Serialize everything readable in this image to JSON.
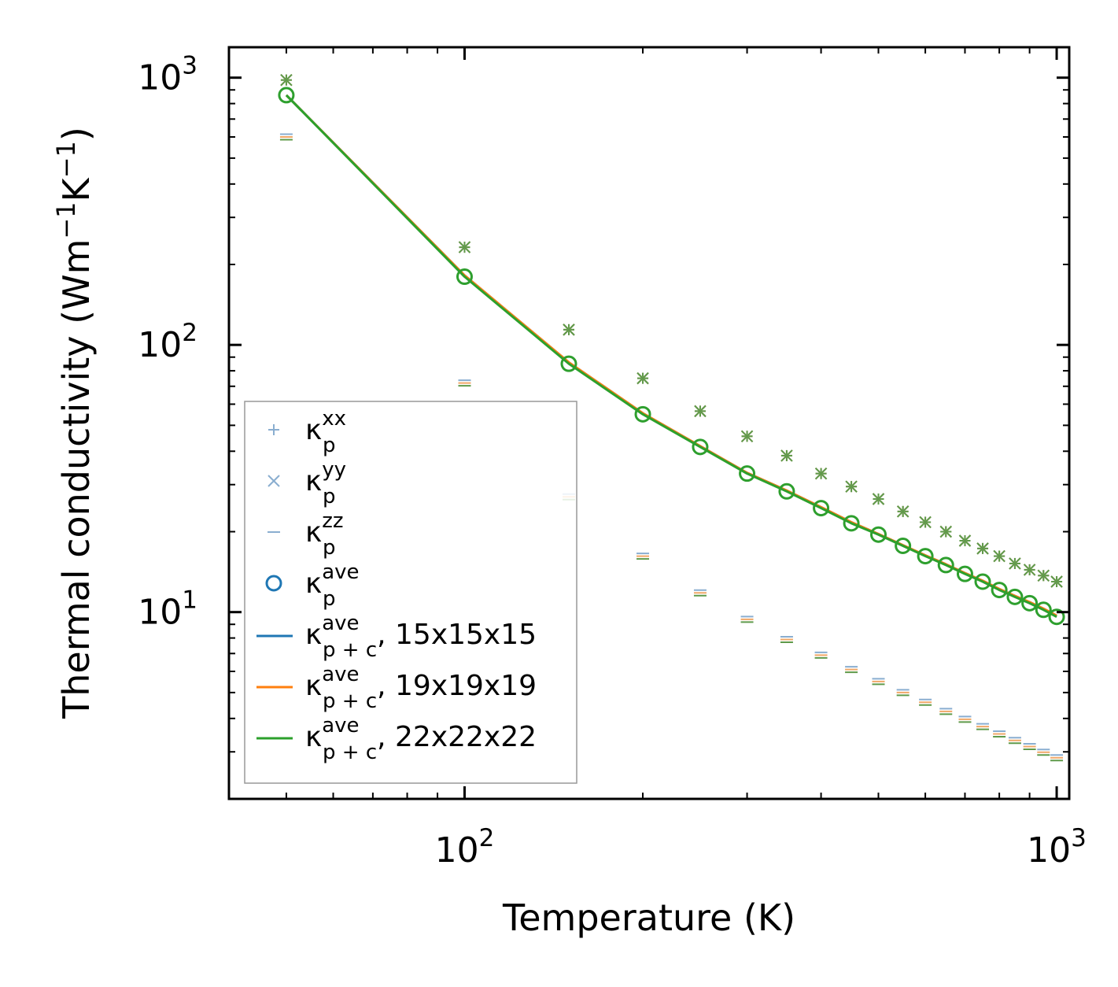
{
  "chart_data": {
    "type": "scatter",
    "title": "",
    "xlabel": "Temperature (K)",
    "ylabel": {
      "main": "Thermal conductivity (Wm",
      "exp1": "−1",
      "mid": "K",
      "exp2": "−1",
      "close": ")"
    },
    "xscale": "log",
    "yscale": "log",
    "xlim": [
      40,
      1050
    ],
    "ylim": [
      2,
      1300
    ],
    "xticks": [
      {
        "value": 100,
        "base": "10",
        "exp": "2"
      },
      {
        "value": 1000,
        "base": "10",
        "exp": "3"
      }
    ],
    "yticks": [
      {
        "value": 10,
        "base": "10",
        "exp": "1"
      },
      {
        "value": 100,
        "base": "10",
        "exp": "2"
      },
      {
        "value": 1000,
        "base": "10",
        "exp": "3"
      }
    ],
    "x": [
      50,
      100,
      150,
      200,
      250,
      300,
      350,
      400,
      450,
      500,
      550,
      600,
      650,
      700,
      750,
      800,
      850,
      900,
      950,
      1000
    ],
    "series": [
      {
        "name": "κp^xx",
        "kind": "marker",
        "marker": "plus",
        "color": "#7aa0c4",
        "values": [
          980,
          232,
          114,
          75,
          56.5,
          45.5,
          38.5,
          33,
          29.5,
          26.5,
          23.8,
          21.7,
          20,
          18.5,
          17.3,
          16.2,
          15.2,
          14.4,
          13.7,
          13
        ]
      },
      {
        "name": "κp^yy",
        "kind": "marker",
        "marker": "x",
        "color": "#7aa0c4",
        "values": [
          980,
          232,
          114,
          75,
          56.5,
          45.5,
          38.5,
          33,
          29.5,
          26.5,
          23.8,
          21.7,
          20,
          18.5,
          17.3,
          16.2,
          15.2,
          14.4,
          13.7,
          13
        ]
      },
      {
        "name": "κp^zz",
        "kind": "marker",
        "marker": "hline",
        "color": "#7aa0c4",
        "values": [
          600,
          72,
          27,
          16.2,
          11.8,
          9.4,
          7.9,
          6.9,
          6.1,
          5.5,
          5.0,
          4.6,
          4.25,
          3.97,
          3.73,
          3.5,
          3.31,
          3.14,
          2.99,
          2.85
        ]
      },
      {
        "name": "κp^ave",
        "kind": "marker",
        "marker": "circle",
        "color": "#2e9f2e",
        "values": [
          860,
          180,
          85,
          55,
          41.5,
          33,
          28.3,
          24.5,
          21.5,
          19.5,
          17.7,
          16.2,
          15.0,
          13.9,
          13.0,
          12.1,
          11.4,
          10.8,
          10.2,
          9.6
        ]
      },
      {
        "name": "κp+c^ave, 15x15x15",
        "kind": "line",
        "color": "#1f77b4",
        "values": [
          860,
          182,
          86,
          55.5,
          41.8,
          33.2,
          28.5,
          24.7,
          21.7,
          19.6,
          17.8,
          16.3,
          15.1,
          14.0,
          13.1,
          12.2,
          11.5,
          10.9,
          10.3,
          9.7
        ]
      },
      {
        "name": "κp+c^ave, 19x19x19",
        "kind": "line",
        "color": "#ff7f0e",
        "values": [
          860,
          182,
          86,
          55.5,
          41.8,
          33.2,
          28.5,
          24.7,
          21.7,
          19.6,
          17.8,
          16.3,
          15.1,
          14.0,
          13.1,
          12.2,
          11.5,
          10.9,
          10.3,
          9.7
        ]
      },
      {
        "name": "κp+c^ave, 22x22x22",
        "kind": "line",
        "color": "#2ca02c",
        "values": [
          860,
          180,
          85,
          55,
          41.5,
          33,
          28.3,
          24.5,
          21.5,
          19.5,
          17.7,
          16.2,
          15.0,
          13.9,
          13.0,
          12.1,
          11.4,
          10.8,
          10.2,
          9.6
        ]
      }
    ],
    "legend": {
      "position": "lower-left",
      "entries": [
        {
          "symbol": "plus",
          "color": "#8aaed0",
          "base": "κ",
          "sup": "xx",
          "sub": "p",
          "suffix": ""
        },
        {
          "symbol": "x",
          "color": "#8aaed0",
          "base": "κ",
          "sup": "yy",
          "sub": "p",
          "suffix": ""
        },
        {
          "symbol": "hline",
          "color": "#8aaed0",
          "base": "κ",
          "sup": "zz",
          "sub": "p",
          "suffix": ""
        },
        {
          "symbol": "circle",
          "color": "#1f77b4",
          "base": "κ",
          "sup": "ave",
          "sub": "p",
          "suffix": ""
        },
        {
          "symbol": "line",
          "color": "#1f77b4",
          "base": "κ",
          "sup": "ave",
          "sub": "p + c",
          "suffix": ", 15x15x15"
        },
        {
          "symbol": "line",
          "color": "#ff7f0e",
          "base": "κ",
          "sup": "ave",
          "sub": "p + c",
          "suffix": ", 19x19x19"
        },
        {
          "symbol": "line",
          "color": "#2ca02c",
          "base": "κ",
          "sup": "ave",
          "sub": "p + c",
          "suffix": ", 22x22x22"
        }
      ]
    }
  }
}
